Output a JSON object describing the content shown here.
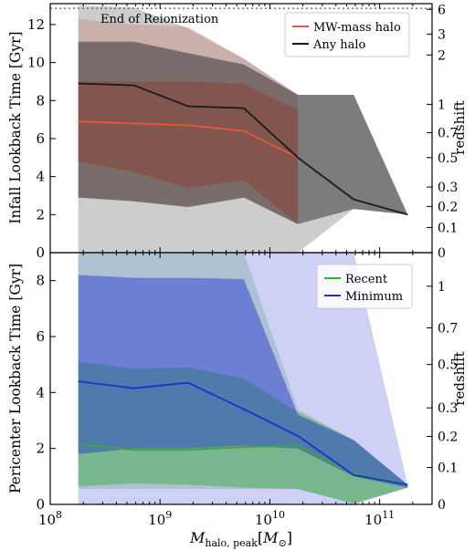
{
  "chart_data": [
    {
      "type": "area",
      "panel": "top",
      "ylabel": "Infall Lookback Time [Gyr]",
      "y2label": "redshift",
      "ylim": [
        0,
        13.1
      ],
      "x_scale": "log",
      "xlim": [
        100000000.0,
        300000000000.0
      ],
      "y_ticks": [
        0,
        2,
        4,
        6,
        8,
        10,
        12
      ],
      "redshift_ticks": [
        {
          "label": "0",
          "t": 0
        },
        {
          "label": "0.1",
          "t": 1.32
        },
        {
          "label": "0.2",
          "t": 2.43
        },
        {
          "label": "0.3",
          "t": 3.45
        },
        {
          "label": "0.5",
          "t": 5.0
        },
        {
          "label": "0.7",
          "t": 6.31
        },
        {
          "label": "1",
          "t": 7.8
        },
        {
          "label": "2",
          "t": 10.4
        },
        {
          "label": "3",
          "t": 11.5
        },
        {
          "label": "6",
          "t": 12.8
        }
      ],
      "reionization": {
        "label": "End of Reionization",
        "t": 12.85
      },
      "x": [
        180000000.0,
        580000000.0,
        1800000000.0,
        5800000000.0,
        18000000000.0,
        58000000000.0,
        180000000000.0
      ],
      "series": [
        {
          "name": "MW-mass halo",
          "color": "#e8563a",
          "median": [
            6.9,
            6.8,
            6.7,
            6.4,
            5.0,
            null,
            null
          ],
          "band_68": {
            "lower": [
              4.8,
              4.25,
              3.4,
              3.8,
              1.5,
              null,
              null
            ],
            "upper": [
              9.0,
              9.0,
              9.0,
              8.9,
              7.5,
              null,
              null
            ]
          },
          "band_95": {
            "lower": [
              2.9,
              2.7,
              2.4,
              2.9,
              1.5,
              null,
              null
            ],
            "upper": [
              12.3,
              12.0,
              11.9,
              10.2,
              8.3,
              null,
              null
            ]
          }
        },
        {
          "name": "Any halo",
          "color": "#1a1a1a",
          "median": [
            8.9,
            8.8,
            7.7,
            7.6,
            5.0,
            2.8,
            2.0
          ],
          "band_68": {
            "lower": [
              2.9,
              2.7,
              2.4,
              2.9,
              1.5,
              2.3,
              2.0
            ],
            "upper": [
              11.1,
              11.1,
              10.5,
              9.9,
              8.3,
              8.3,
              2.0
            ]
          },
          "band_95": {
            "lower": [
              0.0,
              0.0,
              0.0,
              0.0,
              0.0,
              2.3,
              2.0
            ],
            "upper": [
              13.0,
              12.9,
              11.8,
              10.2,
              8.3,
              8.3,
              2.0
            ]
          }
        }
      ],
      "legend": {
        "placement": "top-right",
        "entries": [
          "MW-mass halo",
          "Any halo"
        ]
      }
    },
    {
      "type": "area",
      "panel": "bottom",
      "xlabel": "M_halo,peak [M_sun]",
      "ylabel": "Pericenter Lookback Time [Gyr]",
      "y2label": "redshift",
      "ylim": [
        0,
        9.0
      ],
      "x_scale": "log",
      "xlim": [
        100000000.0,
        300000000000.0
      ],
      "x_ticks": [
        {
          "base": "10",
          "exp": "8",
          "v": 100000000.0
        },
        {
          "base": "10",
          "exp": "9",
          "v": 1000000000.0
        },
        {
          "base": "10",
          "exp": "10",
          "v": 10000000000.0
        },
        {
          "base": "10",
          "exp": "11",
          "v": 100000000000.0
        }
      ],
      "y_ticks": [
        0,
        2,
        4,
        6,
        8
      ],
      "redshift_ticks": [
        {
          "label": "0",
          "t": 0
        },
        {
          "label": "0.1",
          "t": 1.32
        },
        {
          "label": "0.2",
          "t": 2.43
        },
        {
          "label": "0.3",
          "t": 3.45
        },
        {
          "label": "0.5",
          "t": 5.0
        },
        {
          "label": "0.7",
          "t": 6.31
        },
        {
          "label": "1",
          "t": 7.8
        }
      ],
      "x": [
        180000000.0,
        580000000.0,
        1800000000.0,
        5800000000.0,
        18000000000.0,
        58000000000.0,
        180000000000.0
      ],
      "series": [
        {
          "name": "Recent",
          "color": "#3aa83a",
          "median": [
            2.15,
            1.95,
            1.95,
            2.05,
            2.1,
            1.1,
            0.7
          ],
          "band_68": {
            "lower": [
              0.65,
              0.75,
              0.7,
              0.6,
              0.55,
              0.05,
              0.6
            ],
            "upper": [
              5.1,
              4.85,
              4.9,
              4.5,
              3.3,
              2.3,
              0.7
            ]
          },
          "band_95": {
            "lower": [
              0.55,
              0.55,
              0.55,
              0.55,
              0.55,
              0.0,
              0.6
            ],
            "upper": [
              9.0,
              9.0,
              9.0,
              9.0,
              3.4,
              2.3,
              0.7
            ]
          }
        },
        {
          "name": "Minimum",
          "color": "#1f2fd0",
          "median": [
            4.4,
            4.15,
            4.35,
            3.4,
            2.45,
            1.05,
            0.7
          ],
          "band_68": {
            "lower": [
              1.8,
              2.0,
              2.0,
              2.1,
              2.0,
              1.0,
              0.6
            ],
            "upper": [
              8.2,
              8.1,
              8.1,
              8.05,
              3.2,
              2.3,
              0.7
            ]
          },
          "band_95": {
            "lower": [
              0.0,
              0.0,
              0.0,
              0.0,
              0.0,
              0.0,
              0.6
            ],
            "upper": [
              9.0,
              9.0,
              9.0,
              9.0,
              9.0,
              9.0,
              0.7
            ]
          }
        }
      ],
      "legend": {
        "placement": "top-right",
        "entries": [
          "Recent",
          "Minimum"
        ]
      }
    }
  ]
}
